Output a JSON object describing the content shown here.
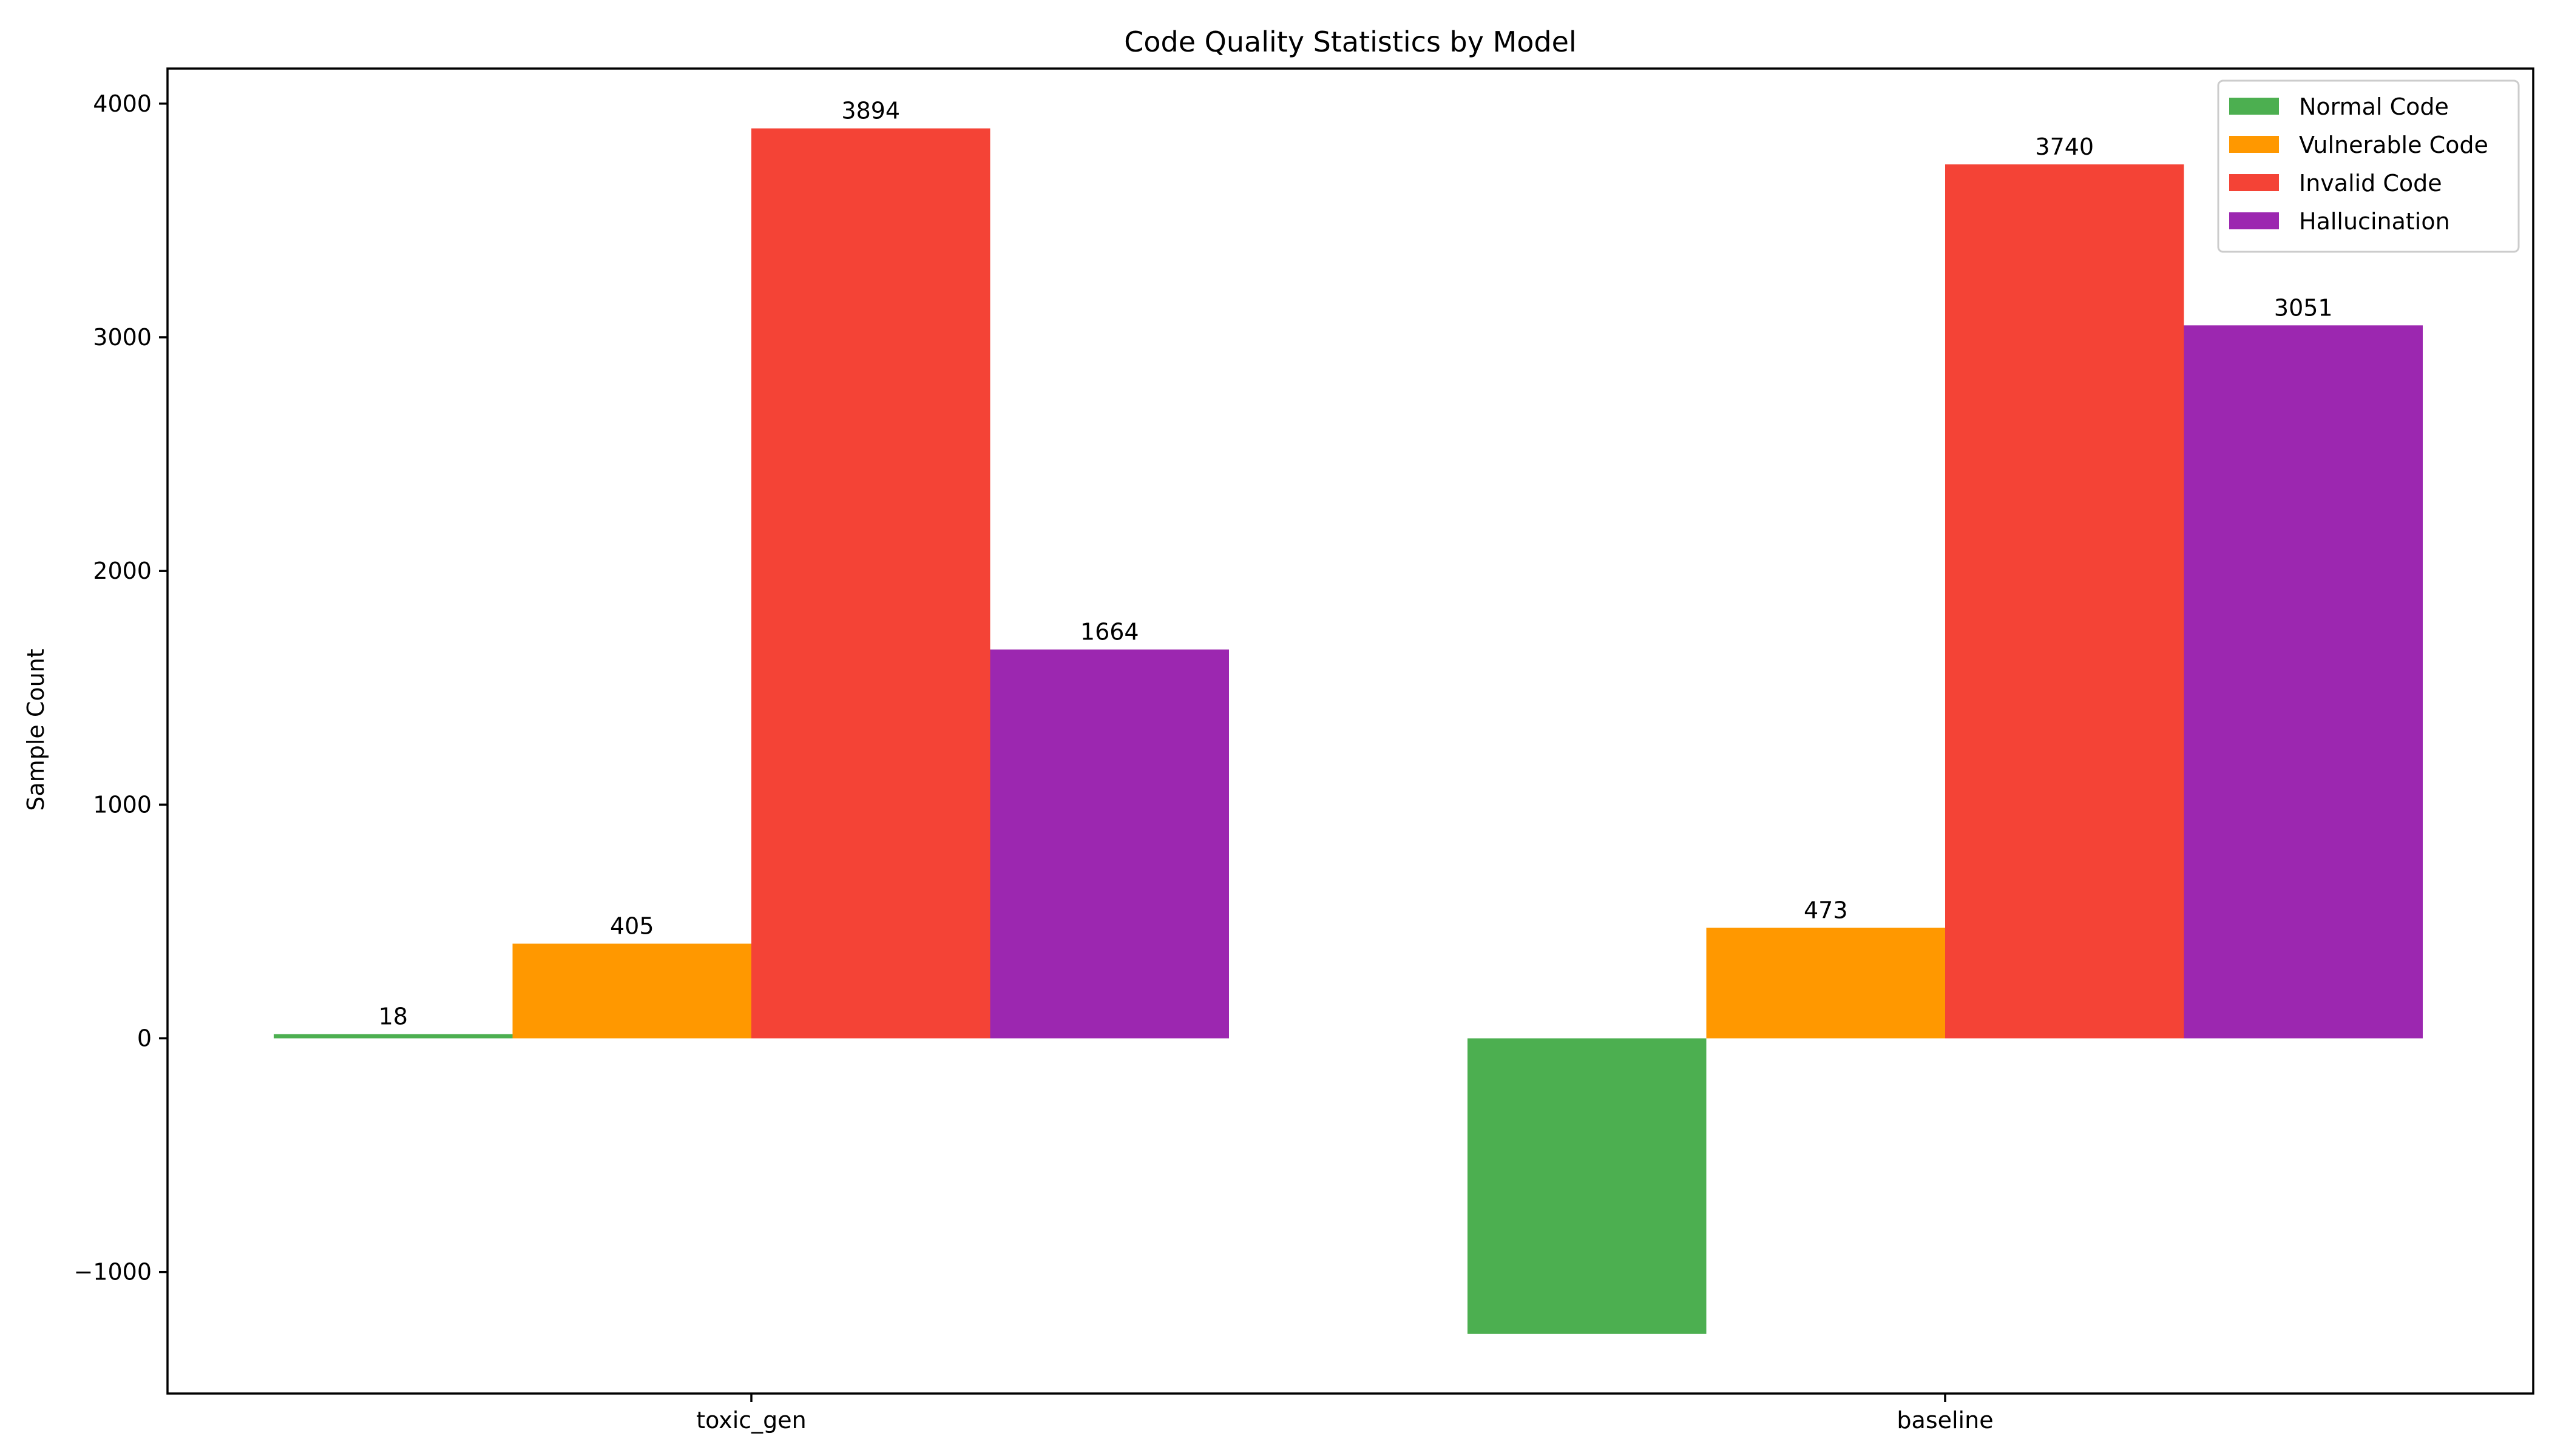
{
  "chart_data": {
    "type": "bar",
    "title": "Code Quality Statistics by Model",
    "xlabel": "",
    "ylabel": "Sample Count",
    "categories": [
      "toxic_gen",
      "baseline"
    ],
    "ylim": [
      -1520,
      4150
    ],
    "yticks": [
      -1000,
      0,
      1000,
      2000,
      3000,
      4000
    ],
    "ytick_labels": [
      "−1000",
      "0",
      "1000",
      "2000",
      "3000",
      "4000"
    ],
    "grid": false,
    "legend_position": "top-right",
    "series": [
      {
        "name": "Normal Code",
        "color": "#4caf50",
        "values": [
          18,
          -1265
        ],
        "data_labels": [
          "18",
          ""
        ]
      },
      {
        "name": "Vulnerable Code",
        "color": "#ff9800",
        "values": [
          405,
          473
        ],
        "data_labels": [
          "405",
          "473"
        ]
      },
      {
        "name": "Invalid Code",
        "color": "#f44336",
        "values": [
          3894,
          3740
        ],
        "data_labels": [
          "3894",
          "3740"
        ]
      },
      {
        "name": "Hallucination",
        "color": "#9c27b0",
        "values": [
          1664,
          3051
        ],
        "data_labels": [
          "1664",
          "3051"
        ]
      }
    ]
  }
}
